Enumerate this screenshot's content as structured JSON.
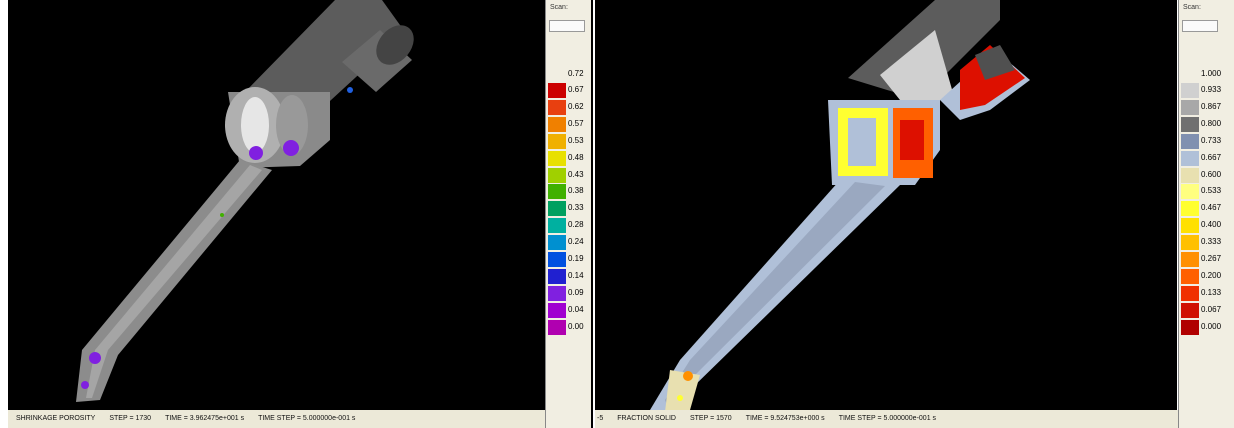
{
  "left_panel": {
    "scan_label": "Scan:",
    "legend": {
      "top_label": "0.72",
      "items": [
        {
          "label": "0.67",
          "color": "#cc0000"
        },
        {
          "label": "0.62",
          "color": "#e84010"
        },
        {
          "label": "0.57",
          "color": "#f08000"
        },
        {
          "label": "0.53",
          "color": "#f0b000"
        },
        {
          "label": "0.48",
          "color": "#e8e000"
        },
        {
          "label": "0.43",
          "color": "#a0d000"
        },
        {
          "label": "0.38",
          "color": "#40b000"
        },
        {
          "label": "0.33",
          "color": "#00a060"
        },
        {
          "label": "0.28",
          "color": "#00b0a0"
        },
        {
          "label": "0.24",
          "color": "#0090d0"
        },
        {
          "label": "0.19",
          "color": "#0050e0"
        },
        {
          "label": "0.14",
          "color": "#2020d0"
        },
        {
          "label": "0.09",
          "color": "#8020e0"
        },
        {
          "label": "0.04",
          "color": "#a000d0"
        },
        {
          "label": "0.00",
          "color": "#b000b0"
        }
      ]
    },
    "status": {
      "quantity": "SHRINKAGE POROSITY",
      "step": "STEP = 1730",
      "time": "TIME = 3.962475e+001 s",
      "time_step": "TIME STEP = 5.000000e-001 s"
    }
  },
  "right_panel": {
    "scan_label": "Scan:",
    "legend": {
      "top_label": "1.000",
      "items": [
        {
          "label": "0.933",
          "color": "#d0d0d0"
        },
        {
          "label": "0.867",
          "color": "#a8a8a8"
        },
        {
          "label": "0.800",
          "color": "#707070"
        },
        {
          "label": "0.733",
          "color": "#8090b0"
        },
        {
          "label": "0.667",
          "color": "#b0c0d8"
        },
        {
          "label": "0.600",
          "color": "#e8e0b0"
        },
        {
          "label": "0.533",
          "color": "#ffff80"
        },
        {
          "label": "0.467",
          "color": "#ffff30"
        },
        {
          "label": "0.400",
          "color": "#ffe000"
        },
        {
          "label": "0.333",
          "color": "#ffc000"
        },
        {
          "label": "0.267",
          "color": "#ff9000"
        },
        {
          "label": "0.200",
          "color": "#ff6000"
        },
        {
          "label": "0.133",
          "color": "#f03000"
        },
        {
          "label": "0.067",
          "color": "#d01000"
        },
        {
          "label": "0.000",
          "color": "#b00000"
        }
      ]
    },
    "status": {
      "prefix": "-5",
      "quantity": "FRACTION SOLID",
      "step": "STEP = 1570",
      "time": "TIME = 9.524753e+000 s",
      "time_step": "TIME STEP = 5.000000e-001 s"
    }
  }
}
